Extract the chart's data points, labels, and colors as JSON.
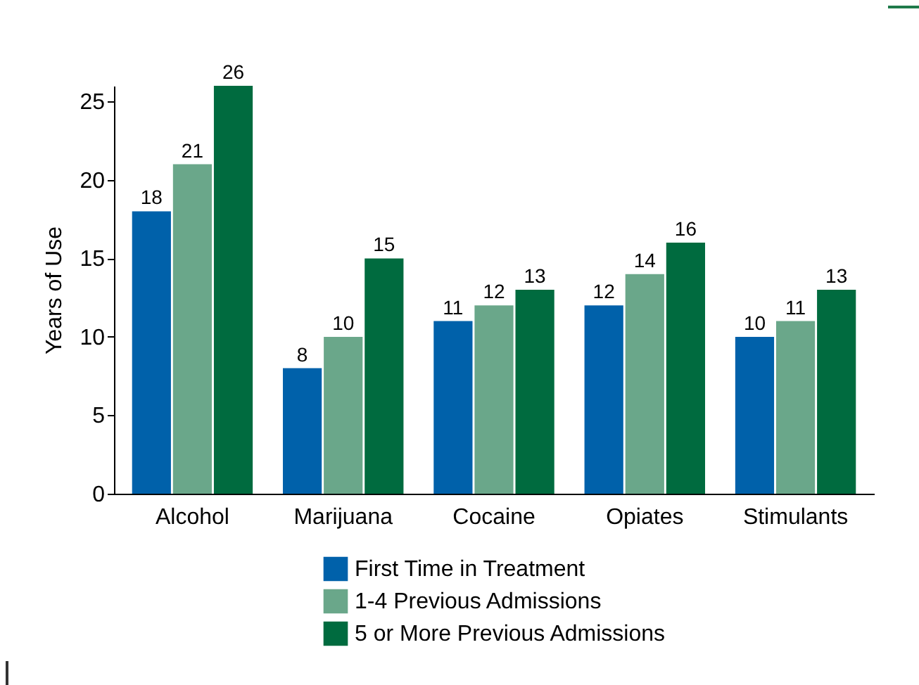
{
  "chart_data": {
    "type": "bar",
    "ylabel": "Years of Use",
    "categories": [
      "Alcohol",
      "Marijuana",
      "Cocaine",
      "Opiates",
      "Stimulants"
    ],
    "series": [
      {
        "name": "First Time in Treatment",
        "color": "#0061aa",
        "values": [
          18,
          8,
          11,
          12,
          10
        ]
      },
      {
        "name": "1-4 Previous Admissions",
        "color": "#6aa78a",
        "values": [
          21,
          10,
          12,
          14,
          11
        ]
      },
      {
        "name": "5 or More Previous Admissions",
        "color": "#006b3f",
        "values": [
          26,
          15,
          13,
          16,
          13
        ]
      }
    ],
    "ylim": [
      0,
      26
    ],
    "yticks": [
      0,
      5,
      10,
      15,
      20,
      25
    ],
    "data_labels": true,
    "legend": "bottom",
    "grid": false
  }
}
